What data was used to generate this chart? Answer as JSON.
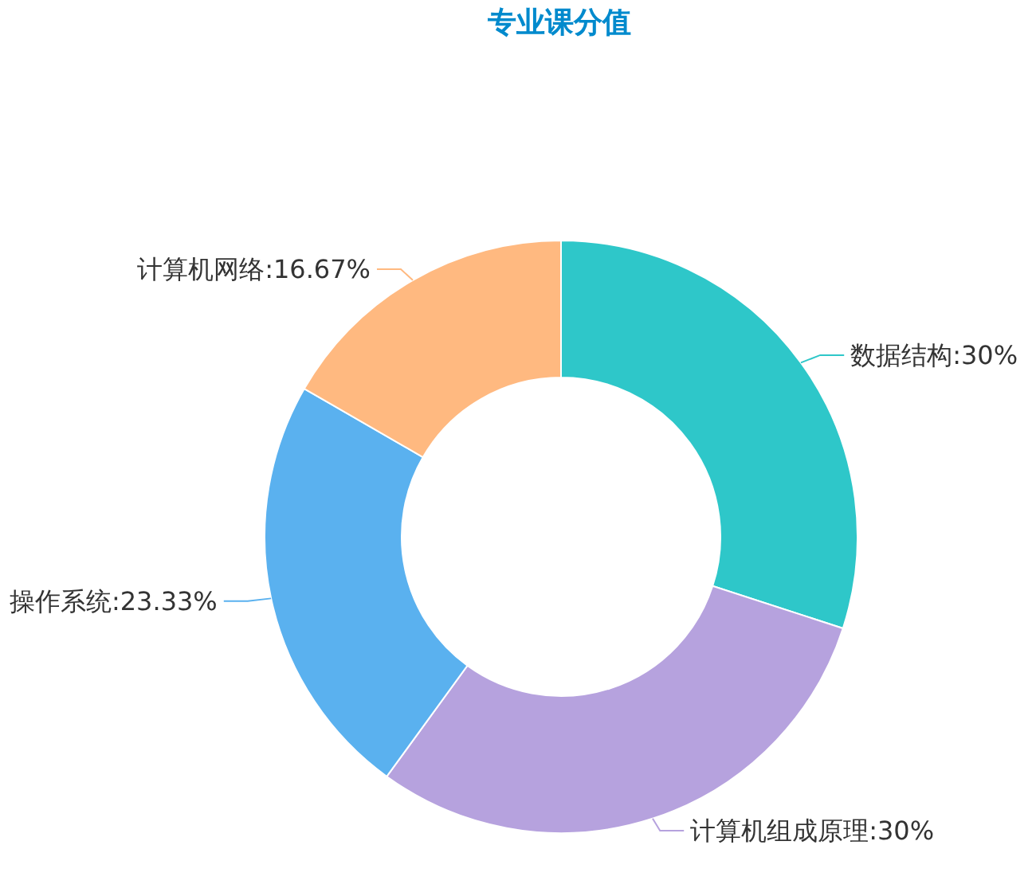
{
  "chart_data": {
    "type": "donut",
    "title": "专业课分值",
    "categories": [
      "数据结构",
      "计算机组成原理",
      "操作系统",
      "计算机网络"
    ],
    "values": [
      30,
      30,
      23.33,
      16.67
    ],
    "value_labels": [
      "30%",
      "30%",
      "23.33%",
      "16.67%"
    ],
    "colors": [
      "#2ec7c9",
      "#b6a2de",
      "#5ab1ef",
      "#ffb980"
    ]
  }
}
